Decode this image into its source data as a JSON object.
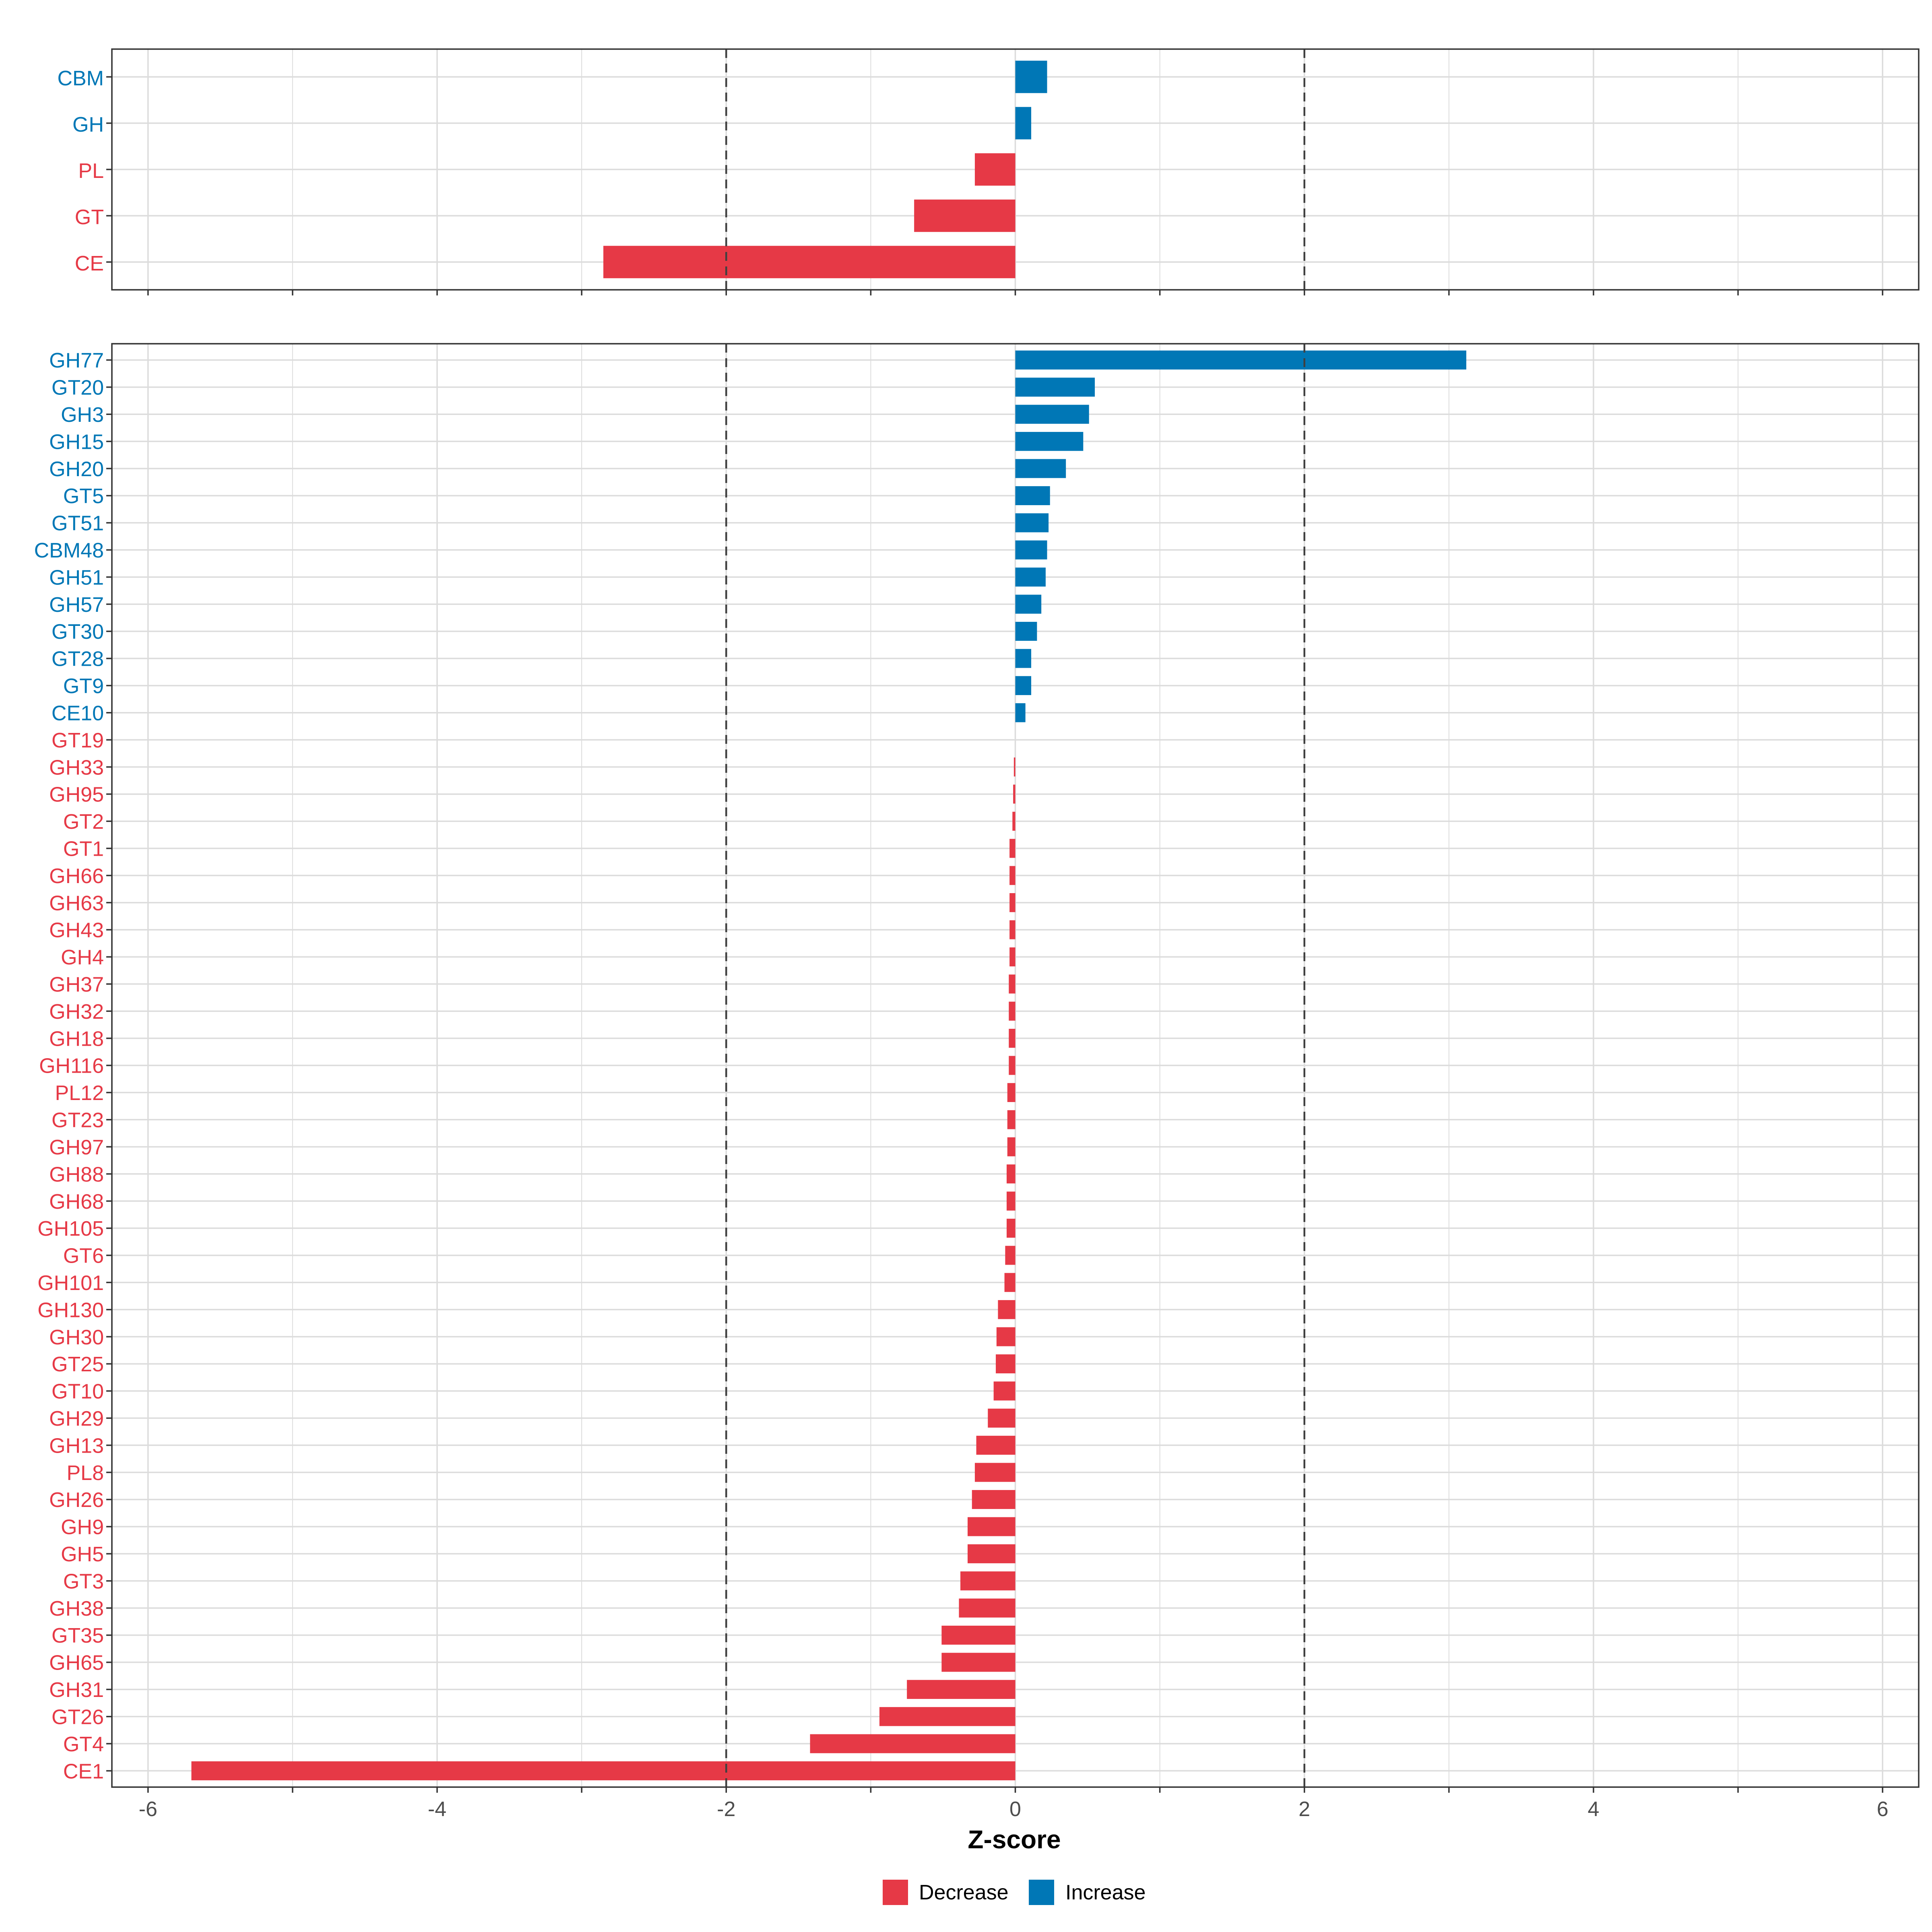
{
  "colors": {
    "decrease": "#E63946",
    "increase": "#0077B6",
    "grid": "#DCDCDC",
    "frame": "#333333",
    "threshold": "#404040"
  },
  "chart_data": [
    {
      "type": "bar",
      "orientation": "horizontal",
      "panel": "top",
      "categories": [
        "CBM",
        "GH",
        "PL",
        "GT",
        "CE"
      ],
      "values": [
        0.22,
        0.11,
        -0.28,
        -0.7,
        -2.85
      ],
      "direction": [
        "Increase",
        "Increase",
        "Decrease",
        "Decrease",
        "Decrease"
      ],
      "xlim": [
        -6.25,
        6.25
      ],
      "xticks": [
        -6,
        -4,
        -2,
        0,
        2,
        4,
        6
      ],
      "thresholds": [
        -2,
        2
      ],
      "grid": true
    },
    {
      "type": "bar",
      "orientation": "horizontal",
      "panel": "bottom",
      "categories": [
        "GH77",
        "GT20",
        "GH3",
        "GH15",
        "GH20",
        "GT5",
        "GT51",
        "CBM48",
        "GH51",
        "GH57",
        "GT30",
        "GT28",
        "GT9",
        "CE10",
        "GT19",
        "GH33",
        "GH95",
        "GT2",
        "GT1",
        "GH66",
        "GH63",
        "GH43",
        "GH4",
        "GH37",
        "GH32",
        "GH18",
        "GH116",
        "PL12",
        "GT23",
        "GH97",
        "GH88",
        "GH68",
        "GH105",
        "GT6",
        "GH101",
        "GH130",
        "GH30",
        "GT25",
        "GT10",
        "GH29",
        "GH13",
        "PL8",
        "GH26",
        "GH9",
        "GH5",
        "GT3",
        "GH38",
        "GT35",
        "GH65",
        "GH31",
        "GT26",
        "GT4",
        "CE1"
      ],
      "values": [
        3.12,
        0.55,
        0.51,
        0.47,
        0.35,
        0.24,
        0.23,
        0.22,
        0.21,
        0.18,
        0.15,
        0.11,
        0.11,
        0.07,
        0.0,
        -0.01,
        -0.015,
        -0.02,
        -0.04,
        -0.04,
        -0.04,
        -0.04,
        -0.04,
        -0.045,
        -0.045,
        -0.045,
        -0.045,
        -0.055,
        -0.055,
        -0.055,
        -0.06,
        -0.06,
        -0.06,
        -0.07,
        -0.075,
        -0.12,
        -0.13,
        -0.135,
        -0.15,
        -0.19,
        -0.27,
        -0.28,
        -0.3,
        -0.33,
        -0.33,
        -0.38,
        -0.39,
        -0.51,
        -0.51,
        -0.75,
        -0.94,
        -1.42,
        -5.7
      ],
      "direction": [
        "Increase",
        "Increase",
        "Increase",
        "Increase",
        "Increase",
        "Increase",
        "Increase",
        "Increase",
        "Increase",
        "Increase",
        "Increase",
        "Increase",
        "Increase",
        "Increase",
        "Decrease",
        "Decrease",
        "Decrease",
        "Decrease",
        "Decrease",
        "Decrease",
        "Decrease",
        "Decrease",
        "Decrease",
        "Decrease",
        "Decrease",
        "Decrease",
        "Decrease",
        "Decrease",
        "Decrease",
        "Decrease",
        "Decrease",
        "Decrease",
        "Decrease",
        "Decrease",
        "Decrease",
        "Decrease",
        "Decrease",
        "Decrease",
        "Decrease",
        "Decrease",
        "Decrease",
        "Decrease",
        "Decrease",
        "Decrease",
        "Decrease",
        "Decrease",
        "Decrease",
        "Decrease",
        "Decrease",
        "Decrease",
        "Decrease",
        "Decrease",
        "Decrease"
      ],
      "xlim": [
        -6.25,
        6.25
      ],
      "xticks": [
        -6,
        -4,
        -2,
        0,
        2,
        4,
        6
      ],
      "thresholds": [
        -2,
        2
      ],
      "grid": true,
      "xlabel": "Z-score"
    }
  ],
  "legend": {
    "placement": "bottom",
    "items": [
      {
        "label": "Decrease",
        "color_key": "decrease"
      },
      {
        "label": "Increase",
        "color_key": "increase"
      }
    ]
  }
}
